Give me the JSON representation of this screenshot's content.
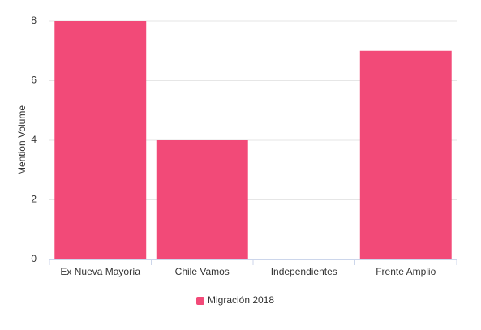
{
  "chart_data": {
    "type": "bar",
    "y_label": "Mention Volume",
    "categories": [
      "Ex Nueva Mayoría",
      "Chile Vamos",
      "Independientes",
      "Frente Amplio"
    ],
    "series": [
      {
        "name": "Migración 2018",
        "color": "#f24a78",
        "values": [
          8,
          4,
          0,
          7
        ]
      }
    ],
    "ylim": [
      0,
      8
    ],
    "yticks": [
      0,
      2,
      4,
      6,
      8
    ],
    "grid": true,
    "legend": "bottom"
  }
}
